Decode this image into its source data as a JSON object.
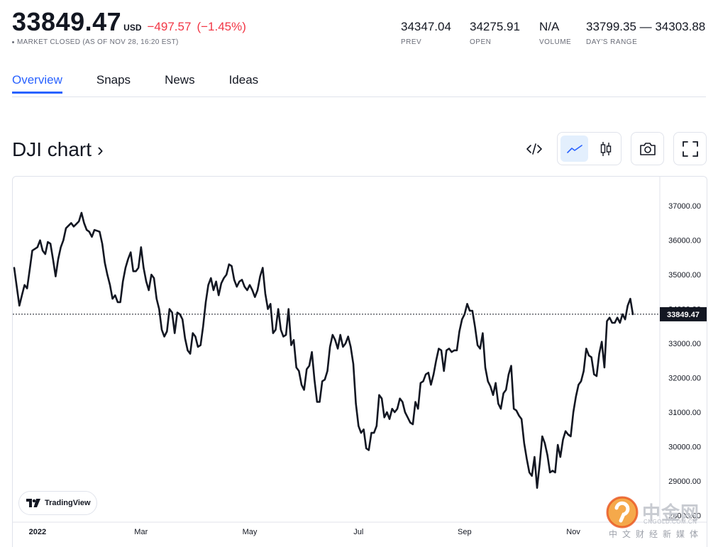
{
  "quote": {
    "price": "33849.47",
    "currency": "USD",
    "change": "−497.57",
    "change_pct": "(−1.45%)",
    "status": "MARKET CLOSED (AS OF NOV 28, 16:20 EST)",
    "stats": [
      {
        "value": "34347.04",
        "label": "PREV"
      },
      {
        "value": "34275.91",
        "label": "OPEN"
      },
      {
        "value": "N/A",
        "label": "VOLUME"
      },
      {
        "value": "33799.35 — 34303.88",
        "label": "DAY'S RANGE"
      }
    ]
  },
  "tabs": [
    {
      "label": "Overview",
      "active": true
    },
    {
      "label": "Snaps",
      "active": false
    },
    {
      "label": "News",
      "active": false
    },
    {
      "label": "Ideas",
      "active": false
    }
  ],
  "chart_header": {
    "title": "DJI chart",
    "chevron": "›",
    "icons": [
      "embed-code-icon",
      "line-chart-icon",
      "candlestick-icon",
      "camera-icon",
      "fullscreen-icon"
    ],
    "active_style": "line"
  },
  "branding": {
    "tradingview_label": "TradingView",
    "watermark_cn": "中金网",
    "watermark_en": "CNGOLD.COM.CN",
    "watermark_sub": "中文财经新媒体"
  },
  "colors": {
    "accent": "#2962ff",
    "negative": "#f23645",
    "line": "#131722",
    "grid_label": "#6a6d78",
    "price_tag_bg": "#131722"
  },
  "chart_data": {
    "type": "line",
    "title": "DJI chart",
    "x_tick_labels": [
      "2022",
      "Mar",
      "May",
      "Jul",
      "Sep",
      "Nov"
    ],
    "x_tick_index": [
      9,
      49,
      91,
      133,
      174,
      216
    ],
    "y_tick_labels": [
      "37000.00",
      "36000.00",
      "35000.00",
      "34000.00",
      "33000.00",
      "32000.00",
      "31000.00",
      "30000.00",
      "29000.00",
      "28000.00"
    ],
    "ylim": [
      27700,
      37850
    ],
    "last_value": 33849.47,
    "last_value_label": "33849.47",
    "grid": false,
    "anchors": [
      [
        0,
        35200
      ],
      [
        2,
        34100
      ],
      [
        4,
        34700
      ],
      [
        5,
        34600
      ],
      [
        7,
        35700
      ],
      [
        9,
        35800
      ],
      [
        10,
        36000
      ],
      [
        11,
        35700
      ],
      [
        12,
        35600
      ],
      [
        13,
        35950
      ],
      [
        14,
        35900
      ],
      [
        15,
        35450
      ],
      [
        16,
        34950
      ],
      [
        17,
        35450
      ],
      [
        18,
        35800
      ],
      [
        19,
        36000
      ],
      [
        20,
        36350
      ],
      [
        22,
        36500
      ],
      [
        23,
        36400
      ],
      [
        25,
        36550
      ],
      [
        26,
        36800
      ],
      [
        27,
        36500
      ],
      [
        28,
        36300
      ],
      [
        29,
        36250
      ],
      [
        30,
        36100
      ],
      [
        31,
        36300
      ],
      [
        33,
        36250
      ],
      [
        34,
        35900
      ],
      [
        35,
        35350
      ],
      [
        36,
        35000
      ],
      [
        37,
        34700
      ],
      [
        38,
        34300
      ],
      [
        39,
        34400
      ],
      [
        40,
        34200
      ],
      [
        41,
        34200
      ],
      [
        42,
        34800
      ],
      [
        43,
        35200
      ],
      [
        44,
        35450
      ],
      [
        45,
        35650
      ],
      [
        46,
        35100
      ],
      [
        47,
        35100
      ],
      [
        48,
        35200
      ],
      [
        49,
        35800
      ],
      [
        50,
        35200
      ],
      [
        51,
        34800
      ],
      [
        52,
        34550
      ],
      [
        53,
        35000
      ],
      [
        54,
        34900
      ],
      [
        55,
        34300
      ],
      [
        56,
        34000
      ],
      [
        57,
        33400
      ],
      [
        58,
        33200
      ],
      [
        59,
        33350
      ],
      [
        60,
        34000
      ],
      [
        61,
        33900
      ],
      [
        62,
        33300
      ],
      [
        63,
        33900
      ],
      [
        64,
        33850
      ],
      [
        65,
        33700
      ],
      [
        66,
        33150
      ],
      [
        67,
        32800
      ],
      [
        68,
        32700
      ],
      [
        69,
        33300
      ],
      [
        70,
        33200
      ],
      [
        71,
        32900
      ],
      [
        72,
        32950
      ],
      [
        73,
        33500
      ],
      [
        74,
        34200
      ],
      [
        75,
        34700
      ],
      [
        76,
        34900
      ],
      [
        77,
        34550
      ],
      [
        78,
        34800
      ],
      [
        79,
        34400
      ],
      [
        80,
        34750
      ],
      [
        81,
        34900
      ],
      [
        82,
        35000
      ],
      [
        83,
        35300
      ],
      [
        84,
        35250
      ],
      [
        85,
        34850
      ],
      [
        86,
        34650
      ],
      [
        87,
        34800
      ],
      [
        88,
        34850
      ],
      [
        89,
        34650
      ],
      [
        90,
        34550
      ],
      [
        91,
        34700
      ],
      [
        92,
        34550
      ],
      [
        93,
        34350
      ],
      [
        94,
        34550
      ],
      [
        95,
        34950
      ],
      [
        96,
        35200
      ],
      [
        97,
        34450
      ],
      [
        98,
        34000
      ],
      [
        99,
        34150
      ],
      [
        100,
        33300
      ],
      [
        101,
        33400
      ],
      [
        102,
        34000
      ],
      [
        103,
        33400
      ],
      [
        104,
        33200
      ],
      [
        105,
        33250
      ],
      [
        106,
        34000
      ],
      [
        107,
        32950
      ],
      [
        108,
        33100
      ],
      [
        109,
        32300
      ],
      [
        110,
        32200
      ],
      [
        111,
        31800
      ],
      [
        112,
        31650
      ],
      [
        113,
        32250
      ],
      [
        114,
        32350
      ],
      [
        115,
        32750
      ],
      [
        116,
        31950
      ],
      [
        117,
        31300
      ],
      [
        118,
        31300
      ],
      [
        119,
        31900
      ],
      [
        120,
        31950
      ],
      [
        121,
        32200
      ],
      [
        122,
        32900
      ],
      [
        123,
        33250
      ],
      [
        124,
        33100
      ],
      [
        125,
        32850
      ],
      [
        126,
        33250
      ],
      [
        127,
        32900
      ],
      [
        128,
        33000
      ],
      [
        129,
        33200
      ],
      [
        130,
        32900
      ],
      [
        131,
        32400
      ],
      [
        132,
        31250
      ],
      [
        133,
        30600
      ],
      [
        134,
        30400
      ],
      [
        135,
        30500
      ],
      [
        136,
        29950
      ],
      [
        137,
        29900
      ],
      [
        138,
        30400
      ],
      [
        139,
        30400
      ],
      [
        140,
        30600
      ],
      [
        141,
        31500
      ],
      [
        142,
        31400
      ],
      [
        143,
        30850
      ],
      [
        144,
        31000
      ],
      [
        145,
        30800
      ],
      [
        146,
        31100
      ],
      [
        147,
        31000
      ],
      [
        148,
        31100
      ],
      [
        149,
        31400
      ],
      [
        150,
        31300
      ],
      [
        151,
        31000
      ],
      [
        152,
        30850
      ],
      [
        153,
        30700
      ],
      [
        154,
        30650
      ],
      [
        155,
        31300
      ],
      [
        156,
        31100
      ],
      [
        157,
        31850
      ],
      [
        158,
        31900
      ],
      [
        159,
        32100
      ],
      [
        160,
        32150
      ],
      [
        161,
        31800
      ],
      [
        162,
        32100
      ],
      [
        163,
        32500
      ],
      [
        164,
        32850
      ],
      [
        165,
        32800
      ],
      [
        166,
        32200
      ],
      [
        167,
        32800
      ],
      [
        168,
        32850
      ],
      [
        169,
        32750
      ],
      [
        170,
        32800
      ],
      [
        171,
        32800
      ],
      [
        172,
        33350
      ],
      [
        173,
        33700
      ],
      [
        174,
        33850
      ],
      [
        175,
        34150
      ],
      [
        176,
        33950
      ],
      [
        177,
        33950
      ],
      [
        178,
        33500
      ],
      [
        179,
        32950
      ],
      [
        180,
        32850
      ],
      [
        181,
        33300
      ],
      [
        182,
        32300
      ],
      [
        183,
        31900
      ],
      [
        184,
        31750
      ],
      [
        185,
        31500
      ],
      [
        186,
        31850
      ],
      [
        187,
        31250
      ],
      [
        188,
        31100
      ],
      [
        189,
        31550
      ],
      [
        190,
        31650
      ],
      [
        191,
        32100
      ],
      [
        192,
        32350
      ],
      [
        193,
        31100
      ],
      [
        194,
        31050
      ],
      [
        195,
        30900
      ],
      [
        196,
        30800
      ],
      [
        197,
        30100
      ],
      [
        198,
        29650
      ],
      [
        199,
        29250
      ],
      [
        200,
        29150
      ],
      [
        201,
        29700
      ],
      [
        202,
        28800
      ],
      [
        203,
        29500
      ],
      [
        204,
        30300
      ],
      [
        205,
        30100
      ],
      [
        206,
        29750
      ],
      [
        207,
        29250
      ],
      [
        208,
        29300
      ],
      [
        209,
        29250
      ],
      [
        210,
        30050
      ],
      [
        211,
        29700
      ],
      [
        212,
        30200
      ],
      [
        213,
        30450
      ],
      [
        214,
        30350
      ],
      [
        215,
        30300
      ],
      [
        216,
        31000
      ],
      [
        217,
        31450
      ],
      [
        218,
        31800
      ],
      [
        219,
        31900
      ],
      [
        220,
        32200
      ],
      [
        221,
        32850
      ],
      [
        222,
        32650
      ],
      [
        223,
        32600
      ],
      [
        224,
        32100
      ],
      [
        225,
        32050
      ],
      [
        226,
        32700
      ],
      [
        227,
        33050
      ],
      [
        228,
        32300
      ],
      [
        229,
        33650
      ],
      [
        230,
        33750
      ],
      [
        231,
        33600
      ],
      [
        232,
        33600
      ],
      [
        233,
        33750
      ],
      [
        234,
        33600
      ],
      [
        235,
        33850
      ],
      [
        236,
        33700
      ],
      [
        237,
        34100
      ],
      [
        238,
        34300
      ],
      [
        239,
        33849.47
      ]
    ]
  }
}
